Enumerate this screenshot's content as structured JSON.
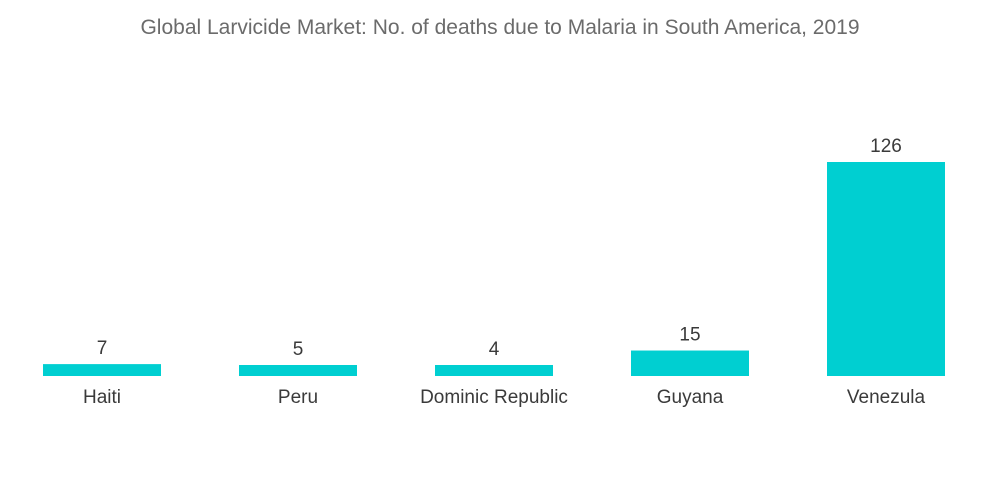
{
  "chart_data": {
    "type": "bar",
    "title": "Global Larvicide Market: No. of deaths due to Malaria in South America, 2019",
    "categories": [
      "Haiti",
      "Peru",
      "Dominic Republic",
      "Guyana",
      "Venezula"
    ],
    "values": [
      7,
      5,
      4,
      15,
      126
    ],
    "data_labels": [
      "7",
      "5",
      "4",
      "15",
      "126"
    ],
    "xlabel": "",
    "ylabel": "",
    "ylim": [
      0,
      126
    ],
    "grid": false,
    "legend": "none",
    "bar_color": "#00cfd1"
  }
}
